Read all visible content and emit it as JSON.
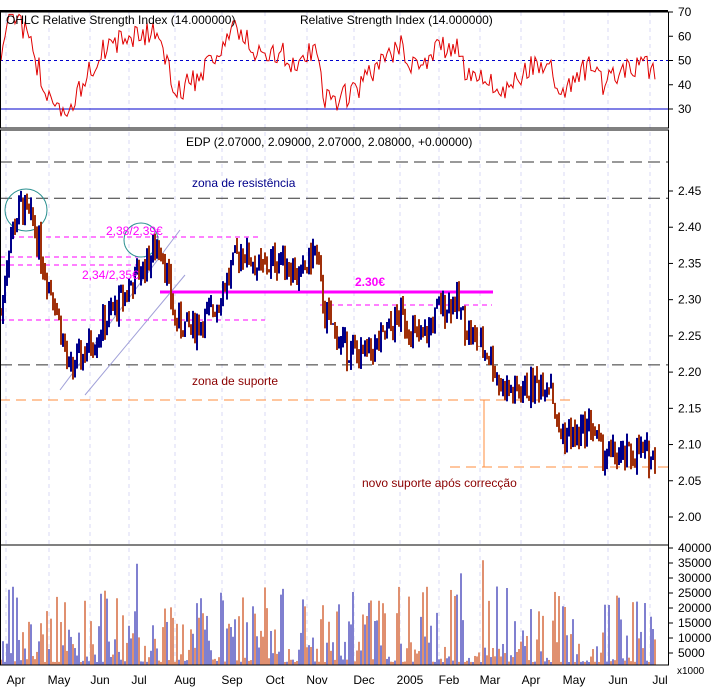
{
  "chart_data": {
    "type": "ohlc",
    "rsi_panel": {
      "title": "Relative Strength Index (14.000000)",
      "overlay_title": "OHLC Relative Strength Index (14.000000)",
      "yticks": [
        30,
        40,
        50,
        60,
        70
      ],
      "ylim": [
        25,
        72
      ],
      "levels": [
        50,
        30
      ]
    },
    "price_panel": {
      "title": "EDP (2.07000, 2.09000, 2.07000, 2.08000, +0.00000)",
      "yticks": [
        "2.00",
        "2.05",
        "2.10",
        "2.15",
        "2.20",
        "2.25",
        "2.30",
        "2.35",
        "2.40",
        "2.45"
      ],
      "ylim": [
        1.97,
        2.52
      ],
      "anchors": [
        [
          0,
          2.28
        ],
        [
          4,
          2.38
        ],
        [
          10,
          2.43
        ],
        [
          17,
          2.4
        ],
        [
          22,
          2.34
        ],
        [
          27,
          2.3
        ],
        [
          34,
          2.2
        ],
        [
          40,
          2.22
        ],
        [
          50,
          2.26
        ],
        [
          60,
          2.3
        ],
        [
          70,
          2.34
        ],
        [
          80,
          2.38
        ],
        [
          87,
          2.27
        ],
        [
          95,
          2.26
        ],
        [
          105,
          2.28
        ],
        [
          120,
          2.37
        ],
        [
          130,
          2.34
        ],
        [
          140,
          2.36
        ],
        [
          150,
          2.33
        ],
        [
          157,
          2.37
        ],
        [
          162,
          2.28
        ],
        [
          170,
          2.24
        ],
        [
          180,
          2.22
        ],
        [
          190,
          2.24
        ],
        [
          200,
          2.28
        ],
        [
          210,
          2.24
        ],
        [
          220,
          2.29
        ],
        [
          227,
          2.3
        ],
        [
          235,
          2.25
        ],
        [
          245,
          2.22
        ],
        [
          250,
          2.18
        ],
        [
          257,
          2.17
        ],
        [
          265,
          2.18
        ],
        [
          275,
          2.19
        ],
        [
          278,
          2.12
        ],
        [
          287,
          2.11
        ],
        [
          295,
          2.13
        ],
        [
          300,
          2.09
        ],
        [
          310,
          2.08
        ],
        [
          320,
          2.09
        ],
        [
          327,
          2.08
        ]
      ],
      "resistance_levels": [
        2.49,
        2.44
      ],
      "support_level": 2.21,
      "annotations": {
        "resistance": "zona de resistência",
        "support": "zona de suporte",
        "new_support": "novo suporte após correcção",
        "level_230": "2.30€",
        "level_238": "2,38/2,39€",
        "level_234": "2,34/2,35€"
      }
    },
    "volume_panel": {
      "yticks": [
        "5000",
        "10000",
        "15000",
        "20000",
        "25000",
        "30000",
        "35000",
        "40000"
      ],
      "unit_label": "x1000",
      "ylim": [
        0,
        42000
      ]
    },
    "x_labels": [
      "Apr",
      "May",
      "Jun",
      "Jul",
      "Aug",
      "Sep",
      "Oct",
      "Nov",
      "Dec",
      "2005",
      "Feb",
      "Mar",
      "Apr",
      "May",
      "Jun",
      "Jul"
    ],
    "colors": {
      "up": "#00008b",
      "down": "#a0300a",
      "rsi": "#e00000",
      "magenta": "#ff00ff",
      "support": "#ff8c3c",
      "vol_up": "#8080d0",
      "vol_down": "#e09070"
    }
  }
}
